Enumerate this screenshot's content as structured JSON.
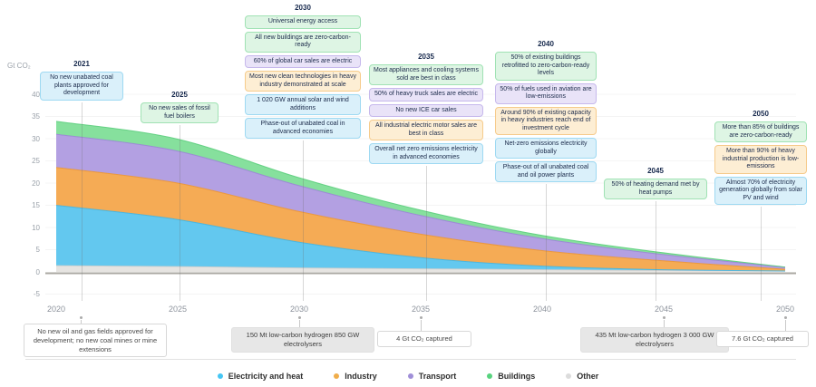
{
  "y_axis": {
    "label": "Gt CO₂",
    "ticks": [
      40,
      35,
      30,
      25,
      20,
      15,
      10,
      5,
      0,
      -5
    ]
  },
  "x_axis": {
    "ticks": [
      "2020",
      "2025",
      "2030",
      "2035",
      "2040",
      "2045",
      "2050"
    ]
  },
  "chart_data": {
    "type": "area",
    "stacked": true,
    "x": [
      2020,
      2025,
      2030,
      2035,
      2040,
      2045,
      2050
    ],
    "ylabel": "Gt CO₂",
    "ylim": [
      -5,
      40
    ],
    "grid": true,
    "legend_position": "bottom",
    "series": [
      {
        "name": "Other",
        "color": "#e6e4e1",
        "edge": "#cfcdca",
        "values": [
          1.4,
          1.2,
          0.9,
          0.7,
          0.5,
          0.3,
          0.2
        ]
      },
      {
        "name": "Electricity and heat",
        "color": "#63c8ef",
        "edge": "#3db4e4",
        "values": [
          13.6,
          10.6,
          5.8,
          2.5,
          0.8,
          0.2,
          0.0
        ]
      },
      {
        "name": "Industry",
        "color": "#f5ab55",
        "edge": "#ec9430",
        "values": [
          8.5,
          8.2,
          6.9,
          5.3,
          3.5,
          2.0,
          0.4
        ]
      },
      {
        "name": "Transport",
        "color": "#b3a0e2",
        "edge": "#9a83d6",
        "values": [
          7.5,
          7.2,
          5.8,
          4.2,
          2.7,
          1.4,
          0.4
        ]
      },
      {
        "name": "Buildings",
        "color": "#86e09d",
        "edge": "#57cd79",
        "values": [
          2.9,
          2.7,
          1.8,
          1.2,
          0.7,
          0.4,
          0.1
        ]
      }
    ]
  },
  "palette": {
    "electricity": {
      "bg": "#daf0fa",
      "border": "#9ed9f2"
    },
    "buildings": {
      "bg": "#def5e4",
      "border": "#a0e2b4"
    },
    "transport": {
      "bg": "#e9e3f8",
      "border": "#c6b8ec"
    },
    "industry": {
      "bg": "#fdeed4",
      "border": "#f6cb8b"
    }
  },
  "milestones": [
    {
      "year": "2021",
      "boxes": [
        {
          "category": "electricity",
          "text": "No new unabated coal plants approved for development"
        }
      ]
    },
    {
      "year": "2025",
      "boxes": [
        {
          "category": "buildings",
          "text": "No new sales of fossil fuel boilers"
        }
      ]
    },
    {
      "year": "2030",
      "boxes": [
        {
          "category": "buildings",
          "text": "Universal energy access"
        },
        {
          "category": "buildings",
          "text": "All new buildings are zero-carbon-ready"
        },
        {
          "category": "transport",
          "text": "60% of global car sales are electric"
        },
        {
          "category": "industry",
          "text": "Most new clean technologies in heavy industry demonstrated at scale"
        },
        {
          "category": "electricity",
          "text": "1 020 GW annual solar and wind additions"
        },
        {
          "category": "electricity",
          "text": "Phase-out of unabated coal in advanced economies"
        }
      ]
    },
    {
      "year": "2035",
      "boxes": [
        {
          "category": "buildings",
          "text": "Most appliances and cooling systems sold are best in class"
        },
        {
          "category": "transport",
          "text": "50% of heavy truck sales are electric"
        },
        {
          "category": "transport",
          "text": "No new ICE car sales"
        },
        {
          "category": "industry",
          "text": "All industrial electric motor sales are best in class"
        },
        {
          "category": "electricity",
          "text": "Overall net zero emissions electricity in advanced economies"
        }
      ]
    },
    {
      "year": "2040",
      "boxes": [
        {
          "category": "buildings",
          "text": "50% of existing buildings retrofitted to zero-carbon-ready levels"
        },
        {
          "category": "transport",
          "text": "50% of fuels used in aviation are low-emissions"
        },
        {
          "category": "industry",
          "text": "Around 90% of existing capacity in heavy industries reach end of investment cycle"
        },
        {
          "category": "electricity",
          "text": "Net-zero emissions electricity globally"
        },
        {
          "category": "electricity",
          "text": "Phase-out of all unabated coal and oil power plants"
        }
      ]
    },
    {
      "year": "2045",
      "boxes": [
        {
          "category": "buildings",
          "text": "50% of heating demand met by heat pumps"
        }
      ]
    },
    {
      "year": "2050",
      "boxes": [
        {
          "category": "buildings",
          "text": "More than 85% of buildings are zero-carbon-ready"
        },
        {
          "category": "industry",
          "text": "More than 90% of heavy industrial production is low-emissions"
        },
        {
          "category": "electricity",
          "text": "Almost 70% of electricity generation globally from solar PV and wind"
        }
      ]
    }
  ],
  "bottom_callouts": [
    {
      "style": "outline",
      "text": "No new oil and gas fields approved for development; no new coal mines or mine extensions"
    },
    {
      "style": "gray",
      "text": "150 Mt low-carbon hydrogen 850 GW electrolysers"
    },
    {
      "style": "outline",
      "text": "4 Gt CO₂ captured"
    },
    {
      "style": "gray",
      "text": "435 Mt low-carbon hydrogen 3 000 GW electrolysers"
    },
    {
      "style": "outline",
      "text": "7.6 Gt CO₂ captured"
    }
  ],
  "legend": {
    "items": [
      {
        "label": "Electricity and heat",
        "color": "#45c6f4"
      },
      {
        "label": "Industry",
        "color": "#f0ad4a"
      },
      {
        "label": "Transport",
        "color": "#a violet"
      },
      {
        "label": "Buildings",
        "color": "#58d37e"
      },
      {
        "label": "Other",
        "color": "#dcdcdc"
      }
    ]
  }
}
